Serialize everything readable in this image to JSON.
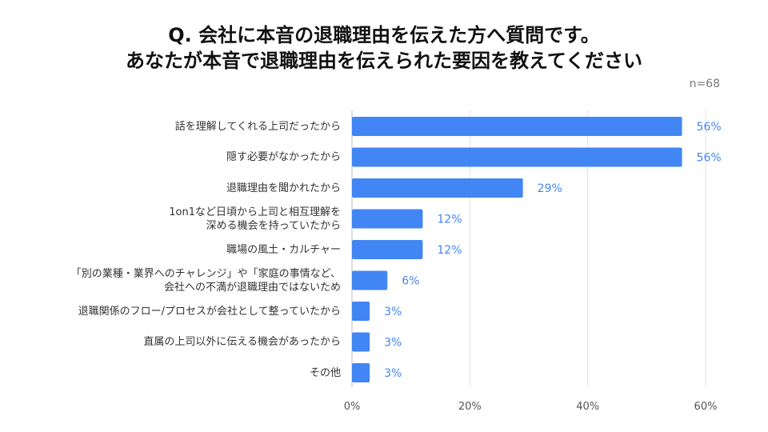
{
  "title": {
    "line1": "Q. 会社に本音の退職理由を伝えた方へ質問です。",
    "line2": "あなたが本音で退職理由を伝えられた要因を教えてください"
  },
  "sample_size": "n=68",
  "colors": {
    "bar": "#4285f4",
    "value_label": "#4285f4",
    "grid": "#e0e0e0",
    "axis_text": "#555555"
  },
  "chart_data": {
    "type": "bar",
    "orientation": "horizontal",
    "categories": [
      [
        "話を理解してくれる上司だったから"
      ],
      [
        "隠す必要がなかったから"
      ],
      [
        "退職理由を聞かれたから"
      ],
      [
        "1on1など日頃から上司と相互理解を",
        "深める機会を持っていたから"
      ],
      [
        "職場の風土・カルチャー"
      ],
      [
        "「別の業種・業界へのチャレンジ」や「家庭の事情など、",
        "会社への不満が退職理由ではないため"
      ],
      [
        "退職関係のフロー/プロセスが会社として整っていたから"
      ],
      [
        "直属の上司以外に伝える機会があったから"
      ],
      [
        "その他"
      ]
    ],
    "values": [
      56,
      56,
      29,
      12,
      12,
      6,
      3,
      3,
      3
    ],
    "value_labels": [
      "56%",
      "56%",
      "29%",
      "12%",
      "12%",
      "6%",
      "3%",
      "3%",
      "3%"
    ],
    "xlim": [
      0,
      60
    ],
    "xticks": [
      0,
      20,
      40,
      60
    ],
    "xtick_labels": [
      "0%",
      "20%",
      "40%",
      "60%"
    ],
    "grid": true,
    "unit": "%"
  }
}
